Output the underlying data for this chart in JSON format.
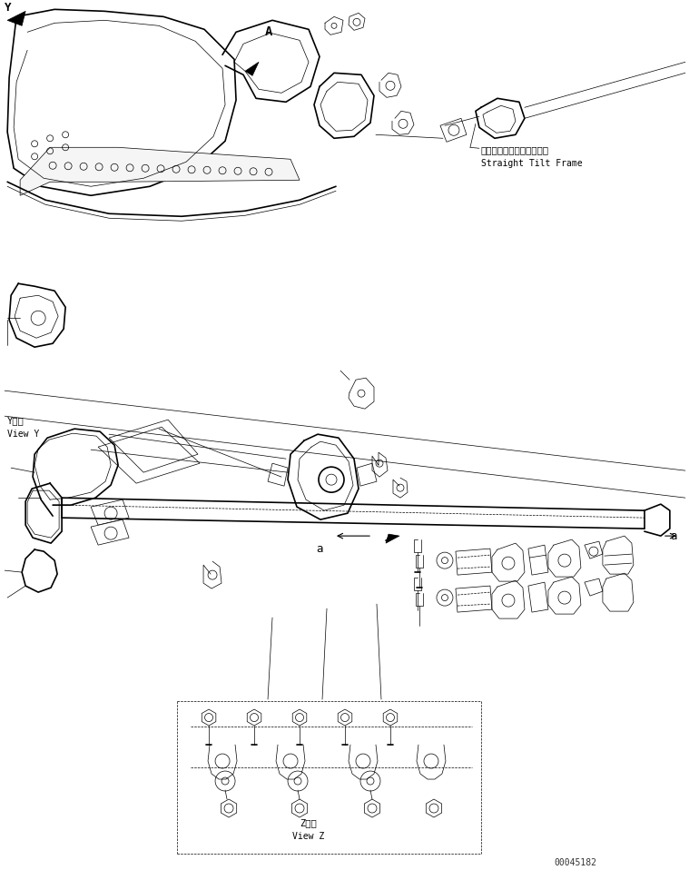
{
  "bg_color": "#ffffff",
  "line_color": "#000000",
  "text_color": "#000000",
  "figure_width": 7.59,
  "figure_height": 9.58,
  "dpi": 100,
  "label_straight_tilt_jp": "ストレートチルトフレーム",
  "label_straight_tilt_en": "Straight Tilt Frame",
  "label_view_y_jp": "Y　視",
  "label_view_y_en": "View Y",
  "label_view_z_jp": "Z　視",
  "label_view_z_en": "View Z",
  "label_a1": "a",
  "label_a2": "a",
  "label_A": "A",
  "part_id": "00045182",
  "lw": 0.8,
  "lw_thick": 1.2,
  "lw_thin": 0.5
}
